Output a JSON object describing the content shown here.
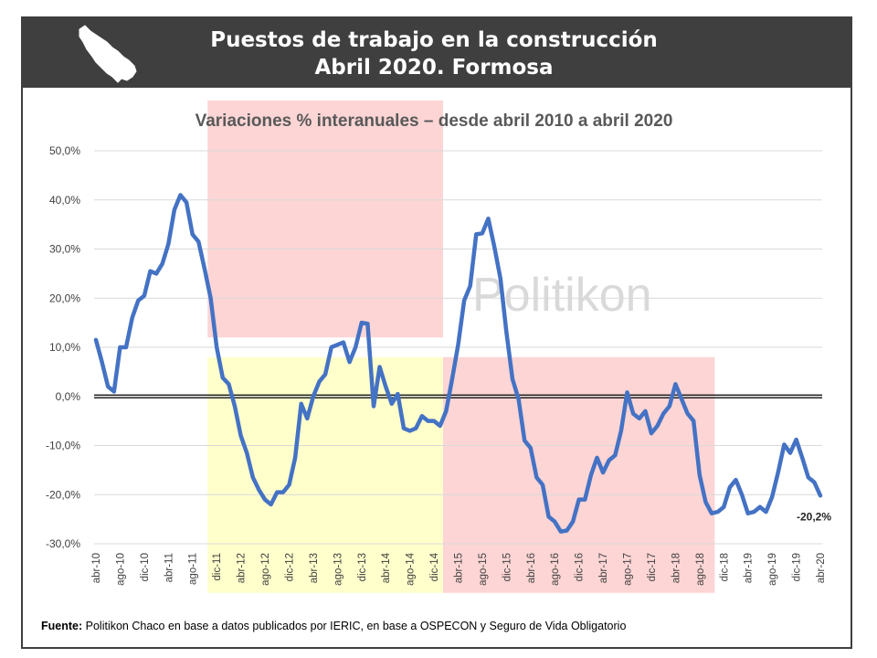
{
  "header": {
    "title_line1": "Puestos de trabajo en la construcción",
    "title_line2": "Abril 2020. Formosa"
  },
  "watermark": "Politikon",
  "source": {
    "label": "Fuente:",
    "text": "Politikon Chaco en base a datos publicados por IERIC, en base a OSPECON y Seguro de Vida Obligatorio"
  },
  "colors": {
    "line": "#4472c4",
    "band_red": "#fdd5d5",
    "band_yellow": "#ffffcc",
    "header_bg": "#3f3f3f"
  },
  "chart_data": {
    "type": "line",
    "title": "Variaciones % interanuales – desde abril 2010 a abril 2020",
    "xlabel": "",
    "ylabel": "",
    "ylim": [
      -30,
      50
    ],
    "yticks": [
      -30,
      -20,
      -10,
      0,
      10,
      20,
      30,
      40,
      50
    ],
    "ytick_labels": [
      "-30,0%",
      "-20,0%",
      "-10,0%",
      "0,0%",
      "10,0%",
      "20,0%",
      "30,0%",
      "40,0%",
      "50,0%"
    ],
    "grid": true,
    "legend": "none",
    "x_tick_labels": [
      "abr-10",
      "ago-10",
      "dic-10",
      "abr-11",
      "ago-11",
      "dic-11",
      "abr-12",
      "ago-12",
      "dic-12",
      "abr-13",
      "ago-13",
      "dic-13",
      "abr-14",
      "ago-14",
      "dic-14",
      "abr-15",
      "ago-15",
      "dic-15",
      "abr-16",
      "ago-16",
      "dic-16",
      "abr-17",
      "ago-17",
      "dic-17",
      "abr-18",
      "ago-18",
      "dic-18",
      "abr-19",
      "ago-19",
      "dic-19",
      "abr-20"
    ],
    "bands": [
      {
        "color": "red",
        "from": "nov-11",
        "to": "ene-15",
        "ymin": 12,
        "ymax": 60
      },
      {
        "color": "yellow",
        "from": "nov-11",
        "to": "ene-15",
        "ymin": -40,
        "ymax": 8
      },
      {
        "color": "red",
        "from": "feb-15",
        "to": "oct-18",
        "ymin": -40,
        "ymax": 8
      }
    ],
    "series": [
      {
        "values": [
          11.5,
          7.0,
          2.0,
          1.0,
          10.0,
          10.0,
          16.0,
          19.5,
          20.5,
          25.5,
          25.0,
          27.0,
          31.0,
          38.0,
          41.0,
          39.5,
          33.0,
          31.5,
          26.0,
          20.0,
          10.0,
          3.8,
          2.5,
          -2.0,
          -8.0,
          -11.5,
          -16.5,
          -19.0,
          -21.0,
          -22.0,
          -19.5,
          -19.5,
          -18.0,
          -12.5,
          -1.5,
          -4.5,
          0.0,
          3.0,
          4.5,
          10.0,
          10.5,
          11.0,
          7.0,
          10.0,
          15.0,
          14.8,
          -2.0,
          6.0,
          2.0,
          -1.5,
          0.5,
          -6.5,
          -7.0,
          -6.5,
          -4.0,
          -5.0,
          -5.0,
          -6.0,
          -3.0,
          3.5,
          10.5,
          19.5,
          22.5,
          33.0,
          33.2,
          36.2,
          30.5,
          24.0,
          13.0,
          3.5,
          -0.5,
          -9.0,
          -10.5,
          -16.5,
          -18.0,
          -24.5,
          -25.5,
          -27.5,
          -27.3,
          -25.5,
          -21.0,
          -21.0,
          -16.0,
          -12.5,
          -15.5,
          -13.0,
          -12.0,
          -7.0,
          0.8,
          -3.5,
          -4.5,
          -3.0,
          -7.5,
          -6.0,
          -3.5,
          -2.0,
          2.5,
          -0.5,
          -3.5,
          -5.0,
          -16.0,
          -21.5,
          -23.8,
          -23.5,
          -22.5,
          -18.5,
          -17.0,
          -20.0,
          -23.8,
          -23.5,
          -22.5,
          -23.5,
          -20.5,
          -15.5,
          -9.8,
          -11.5,
          -8.8,
          -12.5,
          -16.5,
          -17.5,
          -20.2
        ],
        "last_label": "-20,2%"
      }
    ]
  }
}
